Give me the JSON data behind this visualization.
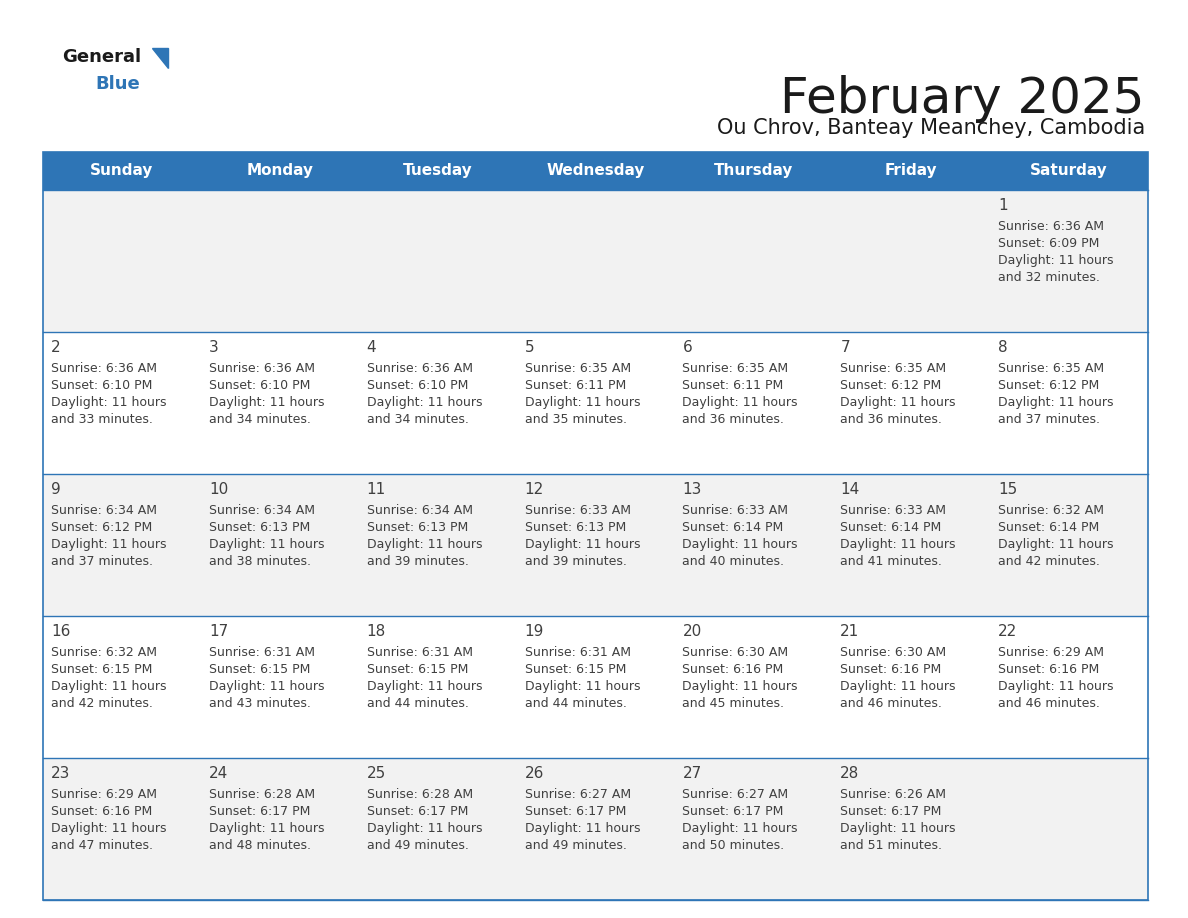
{
  "title": "February 2025",
  "subtitle": "Ou Chrov, Banteay Meanchey, Cambodia",
  "header_color": "#2E75B6",
  "header_text_color": "#FFFFFF",
  "days_of_week": [
    "Sunday",
    "Monday",
    "Tuesday",
    "Wednesday",
    "Thursday",
    "Friday",
    "Saturday"
  ],
  "cell_bg_even": "#F2F2F2",
  "cell_bg_odd": "#FFFFFF",
  "border_color": "#2E75B6",
  "text_color": "#404040",
  "calendar": [
    [
      null,
      null,
      null,
      null,
      null,
      null,
      {
        "day": "1",
        "sunrise": "6:36 AM",
        "sunset": "6:09 PM",
        "daylight_h": "11 hours",
        "daylight_m": "and 32 minutes."
      }
    ],
    [
      {
        "day": "2",
        "sunrise": "6:36 AM",
        "sunset": "6:10 PM",
        "daylight_h": "11 hours",
        "daylight_m": "and 33 minutes."
      },
      {
        "day": "3",
        "sunrise": "6:36 AM",
        "sunset": "6:10 PM",
        "daylight_h": "11 hours",
        "daylight_m": "and 34 minutes."
      },
      {
        "day": "4",
        "sunrise": "6:36 AM",
        "sunset": "6:10 PM",
        "daylight_h": "11 hours",
        "daylight_m": "and 34 minutes."
      },
      {
        "day": "5",
        "sunrise": "6:35 AM",
        "sunset": "6:11 PM",
        "daylight_h": "11 hours",
        "daylight_m": "and 35 minutes."
      },
      {
        "day": "6",
        "sunrise": "6:35 AM",
        "sunset": "6:11 PM",
        "daylight_h": "11 hours",
        "daylight_m": "and 36 minutes."
      },
      {
        "day": "7",
        "sunrise": "6:35 AM",
        "sunset": "6:12 PM",
        "daylight_h": "11 hours",
        "daylight_m": "and 36 minutes."
      },
      {
        "day": "8",
        "sunrise": "6:35 AM",
        "sunset": "6:12 PM",
        "daylight_h": "11 hours",
        "daylight_m": "and 37 minutes."
      }
    ],
    [
      {
        "day": "9",
        "sunrise": "6:34 AM",
        "sunset": "6:12 PM",
        "daylight_h": "11 hours",
        "daylight_m": "and 37 minutes."
      },
      {
        "day": "10",
        "sunrise": "6:34 AM",
        "sunset": "6:13 PM",
        "daylight_h": "11 hours",
        "daylight_m": "and 38 minutes."
      },
      {
        "day": "11",
        "sunrise": "6:34 AM",
        "sunset": "6:13 PM",
        "daylight_h": "11 hours",
        "daylight_m": "and 39 minutes."
      },
      {
        "day": "12",
        "sunrise": "6:33 AM",
        "sunset": "6:13 PM",
        "daylight_h": "11 hours",
        "daylight_m": "and 39 minutes."
      },
      {
        "day": "13",
        "sunrise": "6:33 AM",
        "sunset": "6:14 PM",
        "daylight_h": "11 hours",
        "daylight_m": "and 40 minutes."
      },
      {
        "day": "14",
        "sunrise": "6:33 AM",
        "sunset": "6:14 PM",
        "daylight_h": "11 hours",
        "daylight_m": "and 41 minutes."
      },
      {
        "day": "15",
        "sunrise": "6:32 AM",
        "sunset": "6:14 PM",
        "daylight_h": "11 hours",
        "daylight_m": "and 42 minutes."
      }
    ],
    [
      {
        "day": "16",
        "sunrise": "6:32 AM",
        "sunset": "6:15 PM",
        "daylight_h": "11 hours",
        "daylight_m": "and 42 minutes."
      },
      {
        "day": "17",
        "sunrise": "6:31 AM",
        "sunset": "6:15 PM",
        "daylight_h": "11 hours",
        "daylight_m": "and 43 minutes."
      },
      {
        "day": "18",
        "sunrise": "6:31 AM",
        "sunset": "6:15 PM",
        "daylight_h": "11 hours",
        "daylight_m": "and 44 minutes."
      },
      {
        "day": "19",
        "sunrise": "6:31 AM",
        "sunset": "6:15 PM",
        "daylight_h": "11 hours",
        "daylight_m": "and 44 minutes."
      },
      {
        "day": "20",
        "sunrise": "6:30 AM",
        "sunset": "6:16 PM",
        "daylight_h": "11 hours",
        "daylight_m": "and 45 minutes."
      },
      {
        "day": "21",
        "sunrise": "6:30 AM",
        "sunset": "6:16 PM",
        "daylight_h": "11 hours",
        "daylight_m": "and 46 minutes."
      },
      {
        "day": "22",
        "sunrise": "6:29 AM",
        "sunset": "6:16 PM",
        "daylight_h": "11 hours",
        "daylight_m": "and 46 minutes."
      }
    ],
    [
      {
        "day": "23",
        "sunrise": "6:29 AM",
        "sunset": "6:16 PM",
        "daylight_h": "11 hours",
        "daylight_m": "and 47 minutes."
      },
      {
        "day": "24",
        "sunrise": "6:28 AM",
        "sunset": "6:17 PM",
        "daylight_h": "11 hours",
        "daylight_m": "and 48 minutes."
      },
      {
        "day": "25",
        "sunrise": "6:28 AM",
        "sunset": "6:17 PM",
        "daylight_h": "11 hours",
        "daylight_m": "and 49 minutes."
      },
      {
        "day": "26",
        "sunrise": "6:27 AM",
        "sunset": "6:17 PM",
        "daylight_h": "11 hours",
        "daylight_m": "and 49 minutes."
      },
      {
        "day": "27",
        "sunrise": "6:27 AM",
        "sunset": "6:17 PM",
        "daylight_h": "11 hours",
        "daylight_m": "and 50 minutes."
      },
      {
        "day": "28",
        "sunrise": "6:26 AM",
        "sunset": "6:17 PM",
        "daylight_h": "11 hours",
        "daylight_m": "and 51 minutes."
      },
      null
    ]
  ]
}
